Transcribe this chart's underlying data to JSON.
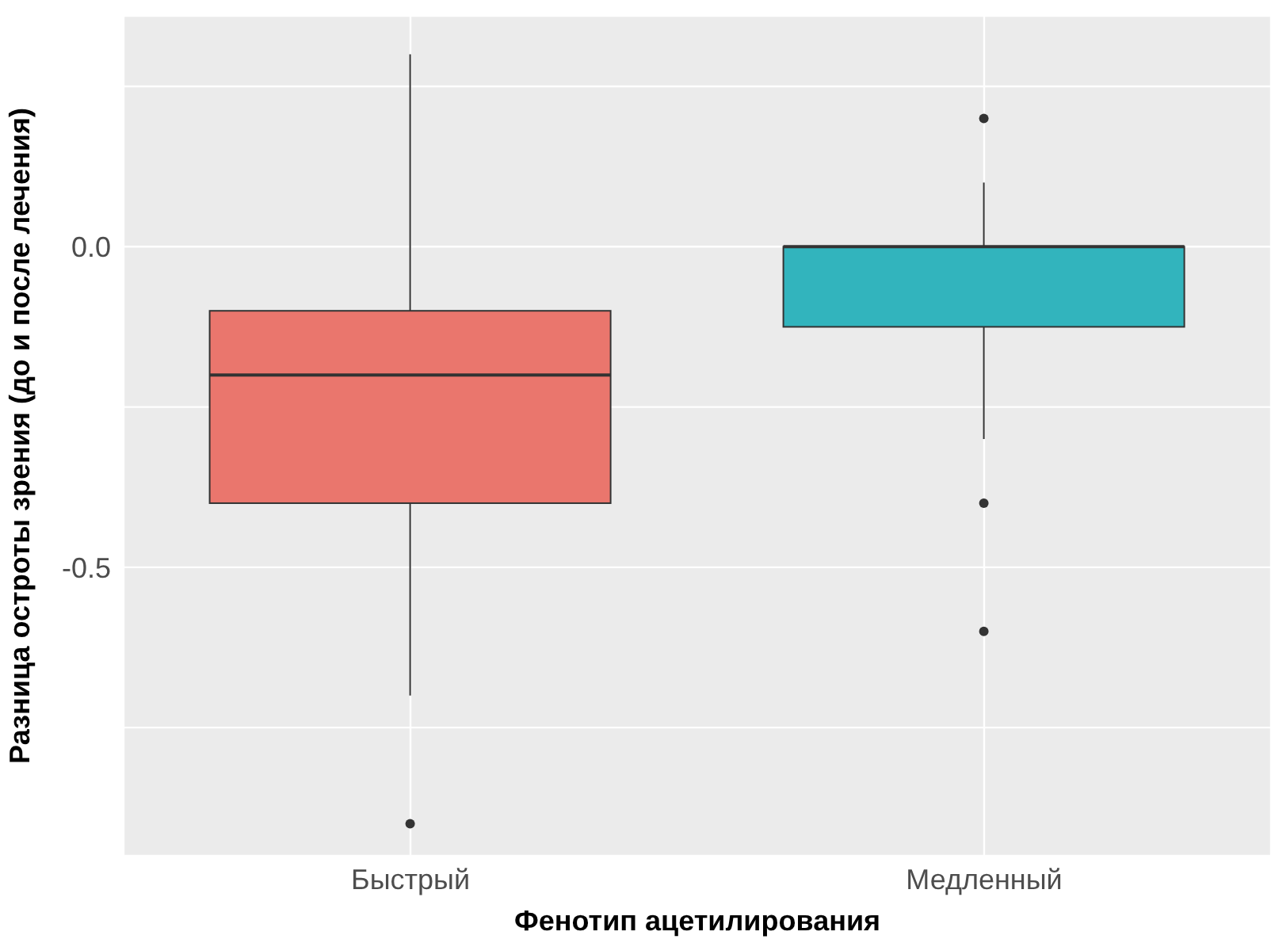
{
  "chart_data": {
    "type": "box",
    "xlabel": "Фенотип ацетилирования",
    "ylabel": "Разница остроты зрения (до и после лечения)",
    "categories": [
      "Быстрый",
      "Медленный"
    ],
    "colors": [
      "#ea766d",
      "#32b4bd"
    ],
    "boxes": [
      {
        "low": -0.7,
        "q1": -0.4,
        "median": -0.2,
        "q3": -0.1,
        "high": 0.3,
        "outliers": [
          -0.9
        ]
      },
      {
        "low": -0.3,
        "q1": -0.125,
        "median": 0.0,
        "q3": 0.0,
        "high": 0.1,
        "outliers": [
          0.2,
          -0.4,
          -0.6
        ]
      }
    ],
    "ylim": [
      -0.95,
      0.36
    ],
    "yticks": [
      {
        "value": -0.75,
        "label": null
      },
      -0.5,
      {
        "value": -0.25,
        "label": null
      },
      {
        "value": 0,
        "label": "0.0"
      },
      {
        "value": 0.25,
        "label": null
      }
    ],
    "grid": true
  }
}
